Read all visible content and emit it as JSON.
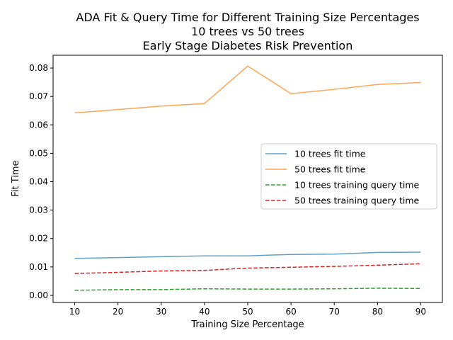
{
  "chart_data": {
    "type": "line",
    "title_lines": [
      "ADA Fit & Query Time for Different Training Size Percentages",
      "10 trees vs 50 trees",
      "Early Stage Diabetes Risk Prevention"
    ],
    "xlabel": "Training Size Percentage",
    "ylabel": "Fit Time",
    "x": [
      10,
      20,
      30,
      40,
      50,
      60,
      70,
      80,
      90
    ],
    "xlim": [
      5,
      95
    ],
    "ylim": [
      -0.0025,
      0.0845
    ],
    "x_ticks": [
      10,
      20,
      30,
      40,
      50,
      60,
      70,
      80,
      90
    ],
    "y_ticks": [
      0.0,
      0.01,
      0.02,
      0.03,
      0.04,
      0.05,
      0.06,
      0.07,
      0.08
    ],
    "y_tick_labels": [
      "0.00",
      "0.01",
      "0.02",
      "0.03",
      "0.04",
      "0.05",
      "0.06",
      "0.07",
      "0.08"
    ],
    "legend_position": "center-right",
    "grid": false,
    "series": [
      {
        "name": "10 trees fit time",
        "color": "#1f77b4",
        "dashed": false,
        "values": [
          0.013,
          0.0133,
          0.0136,
          0.0139,
          0.0139,
          0.0144,
          0.0145,
          0.0151,
          0.0152
        ]
      },
      {
        "name": "50 trees fit time",
        "color": "#ff7f0e",
        "dashed": false,
        "values": [
          0.0642,
          0.0654,
          0.0666,
          0.0675,
          0.0807,
          0.071,
          0.0725,
          0.0742,
          0.0749
        ]
      },
      {
        "name": "10 trees training query time",
        "color": "#2ca02c",
        "dashed": true,
        "values": [
          0.0018,
          0.002,
          0.002,
          0.0023,
          0.0022,
          0.0022,
          0.0023,
          0.0025,
          0.0024
        ]
      },
      {
        "name": "50 trees training query time",
        "color": "#d62728",
        "dashed": true,
        "values": [
          0.0077,
          0.0081,
          0.0086,
          0.0088,
          0.0096,
          0.0099,
          0.0102,
          0.0106,
          0.0111
        ]
      }
    ]
  }
}
